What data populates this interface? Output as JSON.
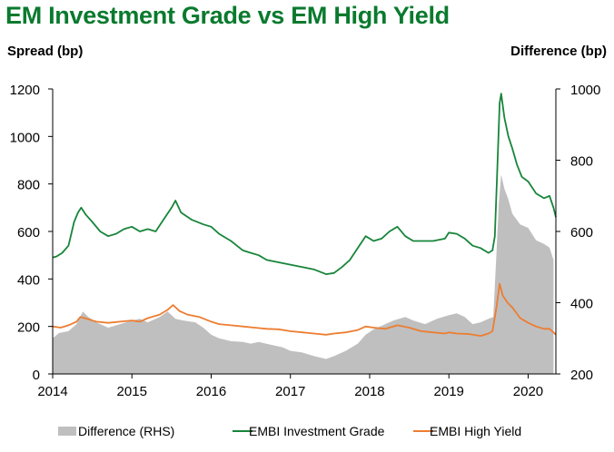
{
  "title": "EM Investment Grade vs EM High Yield",
  "left_axis_title": "Spread (bp)",
  "right_axis_title": "Difference (bp)",
  "colors": {
    "title": "#0a7a2e",
    "investment_grade": "#17853a",
    "high_yield": "#ed7d31",
    "difference": "#bfbfbf"
  },
  "chart_data": {
    "type": "line",
    "title": "EM Investment Grade vs EM High Yield",
    "ylabel": "Spread (bp)",
    "ylabel_right": "Difference (bp)",
    "xlim": [
      2014.0,
      2020.35
    ],
    "ylim": [
      0,
      1200
    ],
    "ylim_right": [
      200,
      1000
    ],
    "x_ticks": [
      "2014",
      "2015",
      "2016",
      "2017",
      "2018",
      "2019",
      "2020"
    ],
    "y_ticks": [
      "0",
      "200",
      "400",
      "600",
      "800",
      "1000",
      "1200"
    ],
    "y_ticks_right": [
      "200",
      "400",
      "600",
      "800",
      "1000"
    ],
    "grid": false,
    "legend_position": "bottom",
    "series": [
      {
        "name": "Difference (RHS)",
        "kind": "area",
        "axis": "right",
        "points": [
          [
            2014.0,
            300
          ],
          [
            2014.08,
            315
          ],
          [
            2014.2,
            320
          ],
          [
            2014.3,
            340
          ],
          [
            2014.38,
            375
          ],
          [
            2014.45,
            360
          ],
          [
            2014.55,
            345
          ],
          [
            2014.7,
            330
          ],
          [
            2014.85,
            340
          ],
          [
            2015.0,
            350
          ],
          [
            2015.1,
            355
          ],
          [
            2015.2,
            345
          ],
          [
            2015.35,
            360
          ],
          [
            2015.45,
            375
          ],
          [
            2015.55,
            355
          ],
          [
            2015.65,
            350
          ],
          [
            2015.8,
            345
          ],
          [
            2015.9,
            330
          ],
          [
            2016.0,
            310
          ],
          [
            2016.1,
            300
          ],
          [
            2016.25,
            292
          ],
          [
            2016.4,
            290
          ],
          [
            2016.5,
            285
          ],
          [
            2016.6,
            290
          ],
          [
            2016.75,
            282
          ],
          [
            2016.9,
            275
          ],
          [
            2017.0,
            265
          ],
          [
            2017.15,
            260
          ],
          [
            2017.3,
            250
          ],
          [
            2017.45,
            242
          ],
          [
            2017.55,
            250
          ],
          [
            2017.7,
            265
          ],
          [
            2017.85,
            285
          ],
          [
            2017.95,
            310
          ],
          [
            2018.05,
            325
          ],
          [
            2018.15,
            335
          ],
          [
            2018.3,
            350
          ],
          [
            2018.45,
            360
          ],
          [
            2018.55,
            350
          ],
          [
            2018.7,
            340
          ],
          [
            2018.85,
            355
          ],
          [
            2019.0,
            365
          ],
          [
            2019.1,
            370
          ],
          [
            2019.2,
            360
          ],
          [
            2019.3,
            340
          ],
          [
            2019.4,
            345
          ],
          [
            2019.5,
            355
          ],
          [
            2019.56,
            360
          ],
          [
            2019.6,
            540
          ],
          [
            2019.63,
            680
          ],
          [
            2019.66,
            760
          ],
          [
            2019.7,
            720
          ],
          [
            2019.75,
            690
          ],
          [
            2019.8,
            650
          ],
          [
            2019.9,
            620
          ],
          [
            2020.0,
            610
          ],
          [
            2020.1,
            575
          ],
          [
            2020.2,
            565
          ],
          [
            2020.27,
            555
          ],
          [
            2020.32,
            520
          ]
        ]
      },
      {
        "name": "EMBI Investment Grade",
        "kind": "line",
        "axis": "left",
        "points": [
          [
            2014.0,
            490
          ],
          [
            2014.05,
            495
          ],
          [
            2014.12,
            510
          ],
          [
            2014.2,
            540
          ],
          [
            2014.27,
            640
          ],
          [
            2014.32,
            680
          ],
          [
            2014.36,
            700
          ],
          [
            2014.42,
            670
          ],
          [
            2014.5,
            640
          ],
          [
            2014.6,
            600
          ],
          [
            2014.7,
            580
          ],
          [
            2014.8,
            590
          ],
          [
            2014.9,
            610
          ],
          [
            2015.0,
            620
          ],
          [
            2015.1,
            600
          ],
          [
            2015.2,
            610
          ],
          [
            2015.3,
            600
          ],
          [
            2015.4,
            650
          ],
          [
            2015.5,
            700
          ],
          [
            2015.55,
            730
          ],
          [
            2015.62,
            680
          ],
          [
            2015.75,
            650
          ],
          [
            2015.9,
            630
          ],
          [
            2016.0,
            620
          ],
          [
            2016.1,
            590
          ],
          [
            2016.25,
            560
          ],
          [
            2016.4,
            520
          ],
          [
            2016.5,
            510
          ],
          [
            2016.6,
            500
          ],
          [
            2016.7,
            480
          ],
          [
            2016.85,
            470
          ],
          [
            2017.0,
            460
          ],
          [
            2017.15,
            450
          ],
          [
            2017.3,
            440
          ],
          [
            2017.45,
            420
          ],
          [
            2017.55,
            425
          ],
          [
            2017.65,
            450
          ],
          [
            2017.75,
            480
          ],
          [
            2017.85,
            530
          ],
          [
            2017.95,
            580
          ],
          [
            2018.05,
            560
          ],
          [
            2018.15,
            570
          ],
          [
            2018.25,
            600
          ],
          [
            2018.35,
            620
          ],
          [
            2018.45,
            580
          ],
          [
            2018.55,
            560
          ],
          [
            2018.65,
            560
          ],
          [
            2018.8,
            560
          ],
          [
            2018.95,
            570
          ],
          [
            2019.0,
            595
          ],
          [
            2019.1,
            590
          ],
          [
            2019.2,
            570
          ],
          [
            2019.3,
            540
          ],
          [
            2019.4,
            530
          ],
          [
            2019.5,
            510
          ],
          [
            2019.55,
            520
          ],
          [
            2019.58,
            580
          ],
          [
            2019.61,
            850
          ],
          [
            2019.64,
            1140
          ],
          [
            2019.66,
            1180
          ],
          [
            2019.7,
            1080
          ],
          [
            2019.75,
            1000
          ],
          [
            2019.8,
            950
          ],
          [
            2019.86,
            880
          ],
          [
            2019.92,
            830
          ],
          [
            2020.0,
            810
          ],
          [
            2020.1,
            760
          ],
          [
            2020.2,
            740
          ],
          [
            2020.27,
            750
          ],
          [
            2020.32,
            700
          ],
          [
            2020.35,
            660
          ]
        ]
      },
      {
        "name": "EMBI High Yield",
        "kind": "line",
        "axis": "left",
        "points": [
          [
            2014.0,
            200
          ],
          [
            2014.1,
            195
          ],
          [
            2014.2,
            205
          ],
          [
            2014.3,
            220
          ],
          [
            2014.35,
            240
          ],
          [
            2014.45,
            230
          ],
          [
            2014.55,
            220
          ],
          [
            2014.7,
            215
          ],
          [
            2014.85,
            220
          ],
          [
            2015.0,
            225
          ],
          [
            2015.1,
            220
          ],
          [
            2015.2,
            235
          ],
          [
            2015.35,
            250
          ],
          [
            2015.45,
            270
          ],
          [
            2015.52,
            290
          ],
          [
            2015.6,
            265
          ],
          [
            2015.7,
            250
          ],
          [
            2015.85,
            240
          ],
          [
            2016.0,
            220
          ],
          [
            2016.1,
            210
          ],
          [
            2016.25,
            205
          ],
          [
            2016.4,
            200
          ],
          [
            2016.55,
            195
          ],
          [
            2016.7,
            190
          ],
          [
            2016.85,
            188
          ],
          [
            2017.0,
            180
          ],
          [
            2017.15,
            175
          ],
          [
            2017.3,
            170
          ],
          [
            2017.45,
            165
          ],
          [
            2017.55,
            170
          ],
          [
            2017.7,
            175
          ],
          [
            2017.85,
            185
          ],
          [
            2017.95,
            200
          ],
          [
            2018.05,
            195
          ],
          [
            2018.2,
            190
          ],
          [
            2018.35,
            205
          ],
          [
            2018.5,
            195
          ],
          [
            2018.65,
            180
          ],
          [
            2018.8,
            175
          ],
          [
            2018.95,
            170
          ],
          [
            2019.0,
            175
          ],
          [
            2019.1,
            170
          ],
          [
            2019.25,
            168
          ],
          [
            2019.4,
            160
          ],
          [
            2019.5,
            170
          ],
          [
            2019.55,
            180
          ],
          [
            2019.6,
            280
          ],
          [
            2019.64,
            380
          ],
          [
            2019.68,
            330
          ],
          [
            2019.74,
            300
          ],
          [
            2019.8,
            280
          ],
          [
            2019.9,
            235
          ],
          [
            2020.0,
            215
          ],
          [
            2020.1,
            200
          ],
          [
            2020.2,
            190
          ],
          [
            2020.27,
            190
          ],
          [
            2020.32,
            175
          ],
          [
            2020.35,
            165
          ]
        ]
      }
    ]
  }
}
